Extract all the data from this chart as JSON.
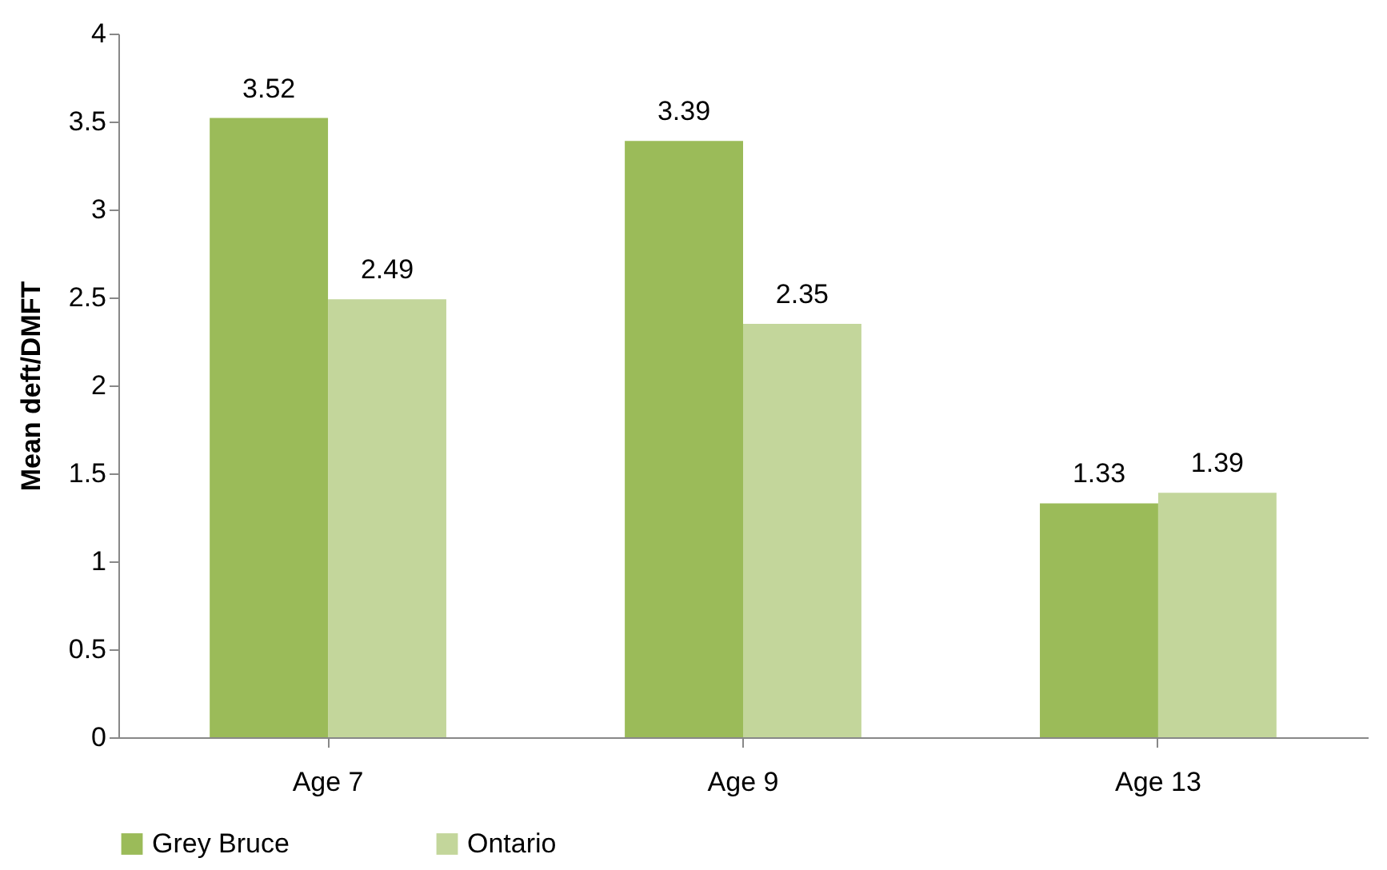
{
  "chart_data": {
    "type": "bar",
    "ylabel": "Mean deft/DMFT",
    "categories": [
      "Age 7",
      "Age 9",
      "Age 13"
    ],
    "series": [
      {
        "name": "Grey Bruce",
        "color": "#9bbb59",
        "values": [
          3.52,
          3.39,
          1.33
        ]
      },
      {
        "name": "Ontario",
        "color": "#c3d69b",
        "values": [
          2.49,
          2.35,
          1.39
        ]
      }
    ],
    "ylim": [
      0,
      4
    ],
    "yticks": [
      0,
      0.5,
      1,
      1.5,
      2,
      2.5,
      3,
      3.5,
      4
    ],
    "grid": false,
    "legend": "bottom",
    "data_labels": true
  }
}
